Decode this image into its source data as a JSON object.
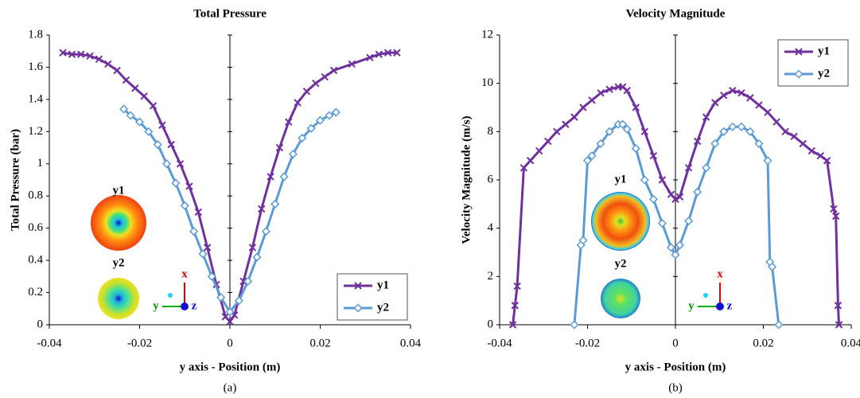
{
  "chart_data": [
    {
      "type": "line",
      "title": "Total Pressure",
      "x_label": "y axis - Position (m)",
      "y_label": "Total Pressure (bar)",
      "caption": "(a)",
      "xlim": [
        -0.04,
        0.04
      ],
      "xticks": [
        -0.04,
        -0.02,
        0,
        0.02,
        0.04
      ],
      "ylim": [
        0,
        1.8
      ],
      "yticks": [
        0,
        0.2,
        0.4,
        0.6,
        0.8,
        1,
        1.2,
        1.4,
        1.6,
        1.8
      ],
      "legend": "lower right",
      "insets": [
        "y1",
        "y2"
      ],
      "axis_triad": [
        "x",
        "y",
        "z"
      ],
      "series": [
        {
          "name": "y1",
          "color": "#7030a0",
          "marker": "x",
          "x": [
            -0.037,
            -0.035,
            -0.033,
            -0.031,
            -0.029,
            -0.027,
            -0.025,
            -0.023,
            -0.021,
            -0.019,
            -0.017,
            -0.015,
            -0.013,
            -0.011,
            -0.009,
            -0.007,
            -0.005,
            -0.003,
            -0.001,
            0,
            0.001,
            0.003,
            0.005,
            0.007,
            0.009,
            0.011,
            0.013,
            0.015,
            0.017,
            0.019,
            0.021,
            0.023,
            0.027,
            0.031,
            0.033,
            0.035,
            0.037
          ],
          "values": [
            1.69,
            1.68,
            1.68,
            1.67,
            1.65,
            1.62,
            1.58,
            1.52,
            1.47,
            1.42,
            1.36,
            1.24,
            1.12,
            1.0,
            0.86,
            0.7,
            0.48,
            0.25,
            0.05,
            0.02,
            0.06,
            0.27,
            0.48,
            0.72,
            0.92,
            1.1,
            1.26,
            1.38,
            1.45,
            1.5,
            1.54,
            1.58,
            1.62,
            1.66,
            1.68,
            1.69,
            1.69
          ]
        },
        {
          "name": "y2",
          "color": "#5b9bd5",
          "marker": "diamond",
          "x": [
            -0.0235,
            -0.022,
            -0.02,
            -0.018,
            -0.016,
            -0.014,
            -0.012,
            -0.01,
            -0.008,
            -0.006,
            -0.004,
            -0.002,
            0,
            0.002,
            0.004,
            0.006,
            0.008,
            0.01,
            0.012,
            0.014,
            0.016,
            0.018,
            0.02,
            0.022,
            0.0235
          ],
          "values": [
            1.34,
            1.3,
            1.26,
            1.2,
            1.12,
            1.0,
            0.88,
            0.74,
            0.58,
            0.44,
            0.3,
            0.17,
            0.08,
            0.15,
            0.27,
            0.42,
            0.58,
            0.75,
            0.92,
            1.06,
            1.16,
            1.22,
            1.27,
            1.3,
            1.32
          ]
        }
      ]
    },
    {
      "type": "line",
      "title": "Velocity Magnitude",
      "x_label": "y axis - Position (m)",
      "y_label": "Velocity Magnitude (m/s)",
      "caption": "(b)",
      "xlim": [
        -0.04,
        0.04
      ],
      "xticks": [
        -0.04,
        -0.02,
        0,
        0.02,
        0.04
      ],
      "ylim": [
        0,
        12
      ],
      "yticks": [
        0,
        2,
        4,
        6,
        8,
        10,
        12
      ],
      "legend": "upper right",
      "insets": [
        "y1",
        "y2"
      ],
      "axis_triad": [
        "x",
        "y",
        "z"
      ],
      "series": [
        {
          "name": "y1",
          "color": "#7030a0",
          "marker": "x",
          "x": [
            -0.037,
            -0.0365,
            -0.036,
            -0.0345,
            -0.033,
            -0.031,
            -0.029,
            -0.027,
            -0.025,
            -0.023,
            -0.021,
            -0.019,
            -0.017,
            -0.015,
            -0.013,
            -0.012,
            -0.011,
            -0.009,
            -0.007,
            -0.005,
            -0.003,
            -0.001,
            0,
            0.001,
            0.003,
            0.005,
            0.007,
            0.009,
            0.011,
            0.013,
            0.015,
            0.017,
            0.019,
            0.021,
            0.023,
            0.025,
            0.027,
            0.029,
            0.031,
            0.033,
            0.0345,
            0.036,
            0.0365,
            0.037,
            0.0372
          ],
          "values": [
            0,
            0.8,
            1.6,
            6.5,
            6.8,
            7.2,
            7.6,
            8.0,
            8.3,
            8.6,
            9.0,
            9.3,
            9.6,
            9.75,
            9.85,
            9.85,
            9.7,
            9.0,
            8.0,
            7.0,
            6.0,
            5.4,
            5.2,
            5.3,
            6.5,
            7.6,
            8.6,
            9.2,
            9.5,
            9.7,
            9.6,
            9.4,
            9.1,
            8.8,
            8.4,
            8.0,
            7.8,
            7.5,
            7.2,
            7.0,
            6.8,
            4.8,
            4.5,
            0.8,
            0
          ]
        },
        {
          "name": "y2",
          "color": "#5b9bd5",
          "marker": "diamond",
          "x": [
            -0.023,
            -0.0215,
            -0.021,
            -0.02,
            -0.019,
            -0.017,
            -0.015,
            -0.013,
            -0.012,
            -0.011,
            -0.009,
            -0.007,
            -0.005,
            -0.003,
            -0.001,
            0,
            0.001,
            0.003,
            0.005,
            0.007,
            0.009,
            0.011,
            0.013,
            0.015,
            0.017,
            0.019,
            0.021,
            0.0215,
            0.022,
            0.0235
          ],
          "values": [
            0,
            3.3,
            3.5,
            6.8,
            7.0,
            7.5,
            8.0,
            8.3,
            8.3,
            8.1,
            7.3,
            6.0,
            5.2,
            4.2,
            3.2,
            2.9,
            3.3,
            4.3,
            5.5,
            6.5,
            7.5,
            8.0,
            8.2,
            8.2,
            8.0,
            7.5,
            6.8,
            2.6,
            2.4,
            0
          ]
        }
      ]
    }
  ]
}
